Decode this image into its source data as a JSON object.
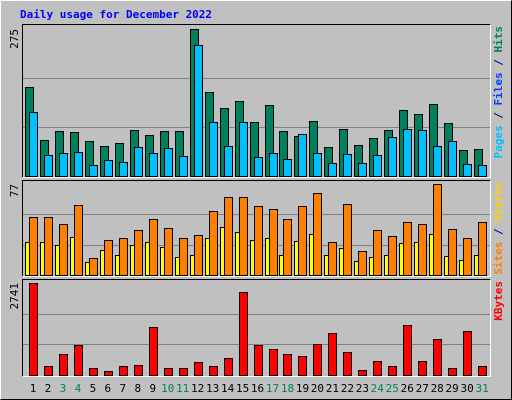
{
  "title": "Daily usage for December 2022",
  "days": [
    "1",
    "2",
    "3",
    "4",
    "5",
    "6",
    "7",
    "8",
    "9",
    "10",
    "11",
    "12",
    "13",
    "14",
    "15",
    "16",
    "17",
    "18",
    "19",
    "20",
    "21",
    "22",
    "23",
    "24",
    "25",
    "26",
    "27",
    "28",
    "29",
    "30",
    "31"
  ],
  "day_colors": [
    "#000000",
    "#000000",
    "#00805c",
    "#00805c",
    "#000000",
    "#000000",
    "#000000",
    "#000000",
    "#000000",
    "#00805c",
    "#00805c",
    "#000000",
    "#000000",
    "#000000",
    "#000000",
    "#000000",
    "#00805c",
    "#00805c",
    "#000000",
    "#000000",
    "#000000",
    "#000000",
    "#000000",
    "#00805c",
    "#00805c",
    "#000000",
    "#000000",
    "#000000",
    "#000000",
    "#000000",
    "#00805c"
  ],
  "chart_data": [
    {
      "type": "bar",
      "ylim": [
        0,
        275
      ],
      "yticks": [
        275
      ],
      "label_parts": [
        {
          "text": "Pages",
          "color": "#00c0ff"
        },
        {
          "text": " / ",
          "color": "#000080"
        },
        {
          "text": "Files",
          "color": "#0040ff"
        },
        {
          "text": " / ",
          "color": "#000080"
        },
        {
          "text": "Hits",
          "color": "#00805c"
        }
      ],
      "series": [
        {
          "color": "#00805c",
          "values": [
            166,
            67,
            84,
            82,
            65,
            56,
            62,
            86,
            77,
            84,
            84,
            275,
            157,
            127,
            140,
            101,
            133,
            84,
            75,
            103,
            54,
            88,
            58,
            71,
            86,
            123,
            116,
            135,
            99,
            49,
            50
          ]
        },
        {
          "color": "#00c0ff",
          "values": [
            120,
            39,
            43,
            45,
            21,
            30,
            26,
            54,
            43,
            52,
            37,
            245,
            101,
            56,
            101,
            36,
            43,
            32,
            79,
            43,
            24,
            41,
            24,
            39,
            73,
            88,
            86,
            56,
            65,
            22,
            21
          ]
        }
      ]
    },
    {
      "type": "bar",
      "ylim": [
        0,
        77
      ],
      "yticks": [
        77
      ],
      "label_parts": [
        {
          "text": "Sites",
          "color": "#ff8000"
        },
        {
          "text": " / ",
          "color": "#000080"
        },
        {
          "text": "Visits",
          "color": "#ffd000"
        }
      ],
      "series": [
        {
          "color": "#ffff00",
          "values": [
            28,
            28,
            25,
            32,
            11,
            21,
            17,
            25,
            28,
            24,
            15,
            17,
            31,
            41,
            36,
            30,
            31,
            17,
            29,
            35,
            17,
            23,
            12,
            15,
            17,
            27,
            28,
            35,
            16,
            13,
            17
          ]
        },
        {
          "color": "#ff8000",
          "values": [
            49,
            49,
            43,
            59,
            14,
            30,
            31,
            38,
            47,
            40,
            31,
            34,
            54,
            66,
            66,
            58,
            56,
            47,
            58,
            69,
            28,
            60,
            20,
            38,
            33,
            45,
            43,
            77,
            39,
            31,
            45
          ]
        }
      ]
    },
    {
      "type": "bar",
      "ylim": [
        0,
        2741
      ],
      "yticks": [
        2741
      ],
      "label_parts": [
        {
          "text": "KBytes",
          "color": "#ff0000"
        }
      ],
      "series": [
        {
          "color": "#ff0000",
          "values": [
            2741,
            268,
            626,
            894,
            209,
            119,
            268,
            298,
            1430,
            209,
            209,
            387,
            268,
            506,
            2473,
            894,
            775,
            626,
            566,
            924,
            1251,
            685,
            149,
            417,
            268,
            1490,
            417,
            1073,
            209,
            1311,
            268
          ]
        }
      ]
    }
  ]
}
